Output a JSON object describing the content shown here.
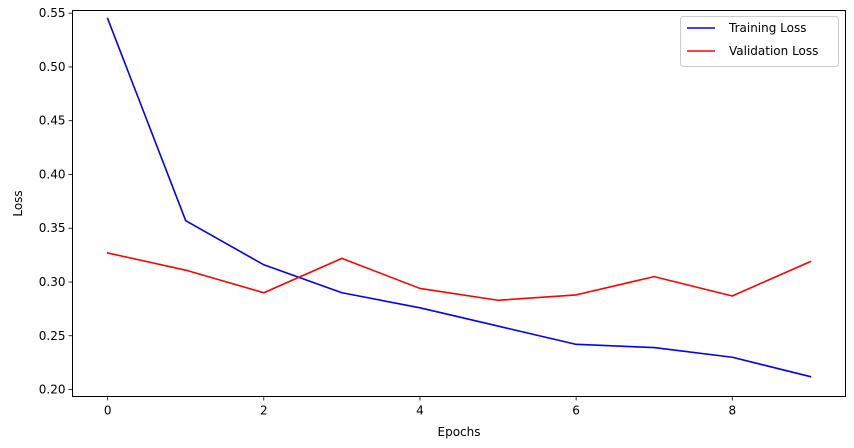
{
  "chart_data": {
    "type": "line",
    "title": "",
    "xlabel": "Epochs",
    "ylabel": "Loss",
    "x": [
      0,
      1,
      2,
      3,
      4,
      5,
      6,
      7,
      8,
      9
    ],
    "xlim": [
      -0.45,
      9.45
    ],
    "ylim": [
      0.1935,
      0.5525
    ],
    "x_ticks": [
      0,
      2,
      4,
      6,
      8
    ],
    "x_tick_labels": [
      "0",
      "2",
      "4",
      "6",
      "8"
    ],
    "y_ticks": [
      0.2,
      0.25,
      0.3,
      0.35,
      0.4,
      0.45,
      0.5,
      0.55
    ],
    "y_tick_labels": [
      "0.20",
      "0.25",
      "0.30",
      "0.35",
      "0.40",
      "0.45",
      "0.50",
      "0.55"
    ],
    "grid": false,
    "legend_position": "top-right",
    "series": [
      {
        "name": "Training Loss",
        "color": "#0000ff",
        "values": [
          0.545,
          0.357,
          0.316,
          0.29,
          0.276,
          0.259,
          0.242,
          0.239,
          0.23,
          0.212
        ]
      },
      {
        "name": "Validation Loss",
        "color": "#ff0000",
        "values": [
          0.327,
          0.311,
          0.29,
          0.322,
          0.294,
          0.283,
          0.288,
          0.305,
          0.287,
          0.319
        ]
      }
    ]
  }
}
